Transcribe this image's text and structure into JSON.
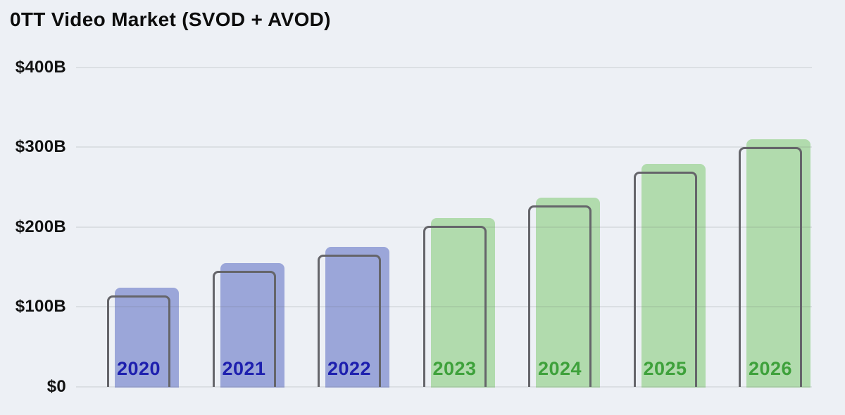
{
  "chart_data": {
    "type": "bar",
    "title": "0TT Video Market (SVOD + AVOD)",
    "categories": [
      "2020",
      "2021",
      "2022",
      "2023",
      "2024",
      "2025",
      "2026"
    ],
    "values": [
      114,
      145,
      165,
      201,
      227,
      269,
      300
    ],
    "points": [
      {
        "year": "2020",
        "value": 114,
        "group": "historical"
      },
      {
        "year": "2021",
        "value": 145,
        "group": "historical"
      },
      {
        "year": "2022",
        "value": 165,
        "group": "historical"
      },
      {
        "year": "2023",
        "value": 201,
        "group": "forecast"
      },
      {
        "year": "2024",
        "value": 227,
        "group": "forecast"
      },
      {
        "year": "2025",
        "value": 269,
        "group": "forecast"
      },
      {
        "year": "2026",
        "value": 300,
        "group": "forecast"
      }
    ],
    "xlabel": "",
    "ylabel": "",
    "ylim": [
      0,
      400
    ],
    "y_ticks": [
      {
        "label": "$400B",
        "value": 400
      },
      {
        "label": "$300B",
        "value": 300
      },
      {
        "label": "$200B",
        "value": 200
      },
      {
        "label": "$100B",
        "value": 100
      },
      {
        "label": "$0",
        "value": 0
      }
    ],
    "grid": true,
    "legend": false,
    "colors": {
      "background": "#edf0f5",
      "historical_fill": "#9ba6d9",
      "historical_label": "#1d1fae",
      "forecast_fill": "#b1dbad",
      "forecast_label": "#3ea13b",
      "bar_outline": "#65656a",
      "gridline": "#dedfe0",
      "text": "#131313"
    }
  }
}
